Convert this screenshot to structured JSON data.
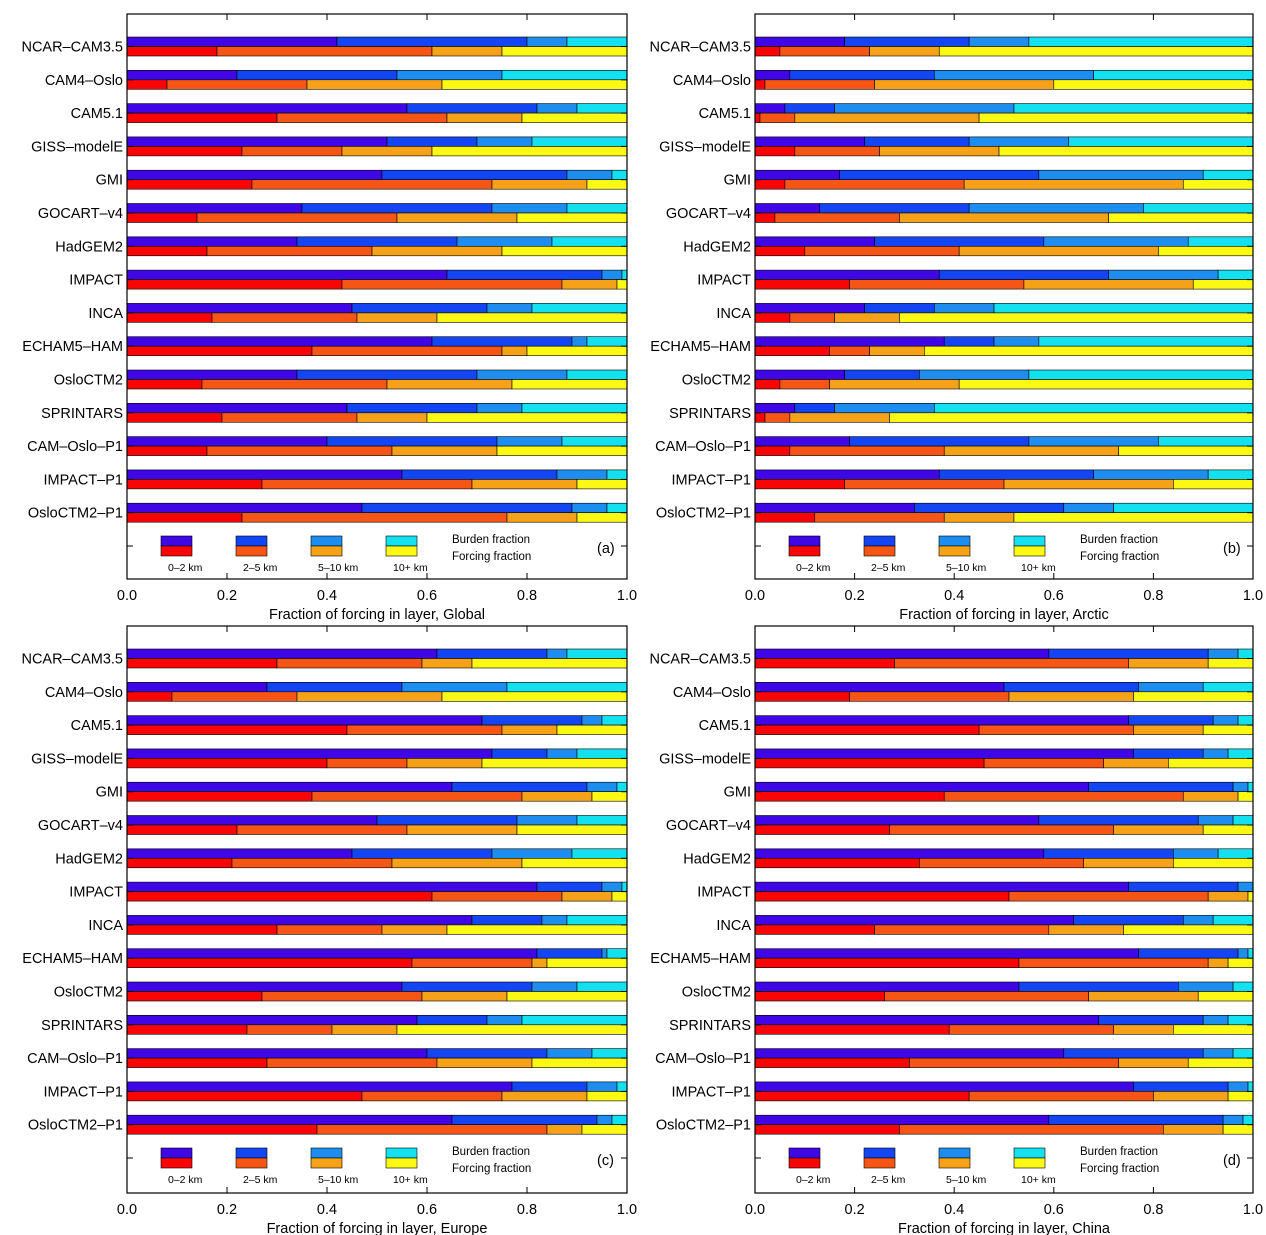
{
  "colors": {
    "burden": [
      "#3f07e6",
      "#1445f3",
      "#1d8eef",
      "#14e1f0"
    ],
    "forcing": [
      "#f80606",
      "#f55515",
      "#f6a218",
      "#fbf914"
    ],
    "frame": "#000000"
  },
  "legend": {
    "swatch_labels": [
      "0–2 km",
      "2–5 km",
      "5–10 km",
      "10+ km"
    ],
    "burden_label": "Burden fraction",
    "forcing_label": "Forcing fraction"
  },
  "models": [
    "NCAR–CAM3.5",
    "CAM4–Oslo",
    "CAM5.1",
    "GISS–modelE",
    "GMI",
    "GOCART–v4",
    "HadGEM2",
    "IMPACT",
    "INCA",
    "ECHAM5–HAM",
    "OsloCTM2",
    "SPRINTARS",
    "CAM–Oslo–P1",
    "IMPACT–P1",
    "OsloCTM2–P1"
  ],
  "chart_data": [
    {
      "type": "bar",
      "panel": "(a)",
      "xlabel": "Fraction of forcing in layer, Global",
      "xlim": [
        0,
        1
      ],
      "xticks": [
        "0.0",
        "0.2",
        "0.4",
        "0.6",
        "0.8",
        "1.0"
      ],
      "stacked": true,
      "orientation": "horizontal",
      "burden": [
        [
          0.42,
          0.38,
          0.08,
          0.12
        ],
        [
          0.22,
          0.32,
          0.21,
          0.25
        ],
        [
          0.56,
          0.26,
          0.08,
          0.1
        ],
        [
          0.52,
          0.18,
          0.11,
          0.19
        ],
        [
          0.51,
          0.37,
          0.09,
          0.03
        ],
        [
          0.35,
          0.38,
          0.15,
          0.12
        ],
        [
          0.34,
          0.32,
          0.19,
          0.15
        ],
        [
          0.64,
          0.31,
          0.04,
          0.01
        ],
        [
          0.45,
          0.27,
          0.09,
          0.19
        ],
        [
          0.61,
          0.28,
          0.03,
          0.08
        ],
        [
          0.34,
          0.36,
          0.18,
          0.12
        ],
        [
          0.44,
          0.26,
          0.09,
          0.21
        ],
        [
          0.4,
          0.34,
          0.13,
          0.13
        ],
        [
          0.55,
          0.31,
          0.1,
          0.04
        ],
        [
          0.47,
          0.42,
          0.07,
          0.04
        ]
      ],
      "forcing": [
        [
          0.18,
          0.43,
          0.14,
          0.25
        ],
        [
          0.08,
          0.28,
          0.27,
          0.37
        ],
        [
          0.3,
          0.34,
          0.15,
          0.21
        ],
        [
          0.23,
          0.2,
          0.18,
          0.39
        ],
        [
          0.25,
          0.48,
          0.19,
          0.08
        ],
        [
          0.14,
          0.4,
          0.24,
          0.22
        ],
        [
          0.16,
          0.33,
          0.26,
          0.25
        ],
        [
          0.43,
          0.44,
          0.11,
          0.02
        ],
        [
          0.17,
          0.29,
          0.16,
          0.38
        ],
        [
          0.37,
          0.38,
          0.05,
          0.2
        ],
        [
          0.15,
          0.37,
          0.25,
          0.23
        ],
        [
          0.19,
          0.27,
          0.14,
          0.4
        ],
        [
          0.16,
          0.37,
          0.21,
          0.26
        ],
        [
          0.27,
          0.42,
          0.21,
          0.1
        ],
        [
          0.23,
          0.53,
          0.14,
          0.1
        ]
      ]
    },
    {
      "type": "bar",
      "panel": "(b)",
      "xlabel": "Fraction of forcing in layer, Arctic",
      "xlim": [
        0,
        1
      ],
      "xticks": [
        "0.0",
        "0.2",
        "0.4",
        "0.6",
        "0.8",
        "1.0"
      ],
      "stacked": true,
      "orientation": "horizontal",
      "burden": [
        [
          0.18,
          0.25,
          0.12,
          0.45
        ],
        [
          0.07,
          0.29,
          0.32,
          0.32
        ],
        [
          0.06,
          0.1,
          0.36,
          0.48
        ],
        [
          0.22,
          0.21,
          0.2,
          0.37
        ],
        [
          0.17,
          0.4,
          0.33,
          0.1
        ],
        [
          0.13,
          0.3,
          0.35,
          0.22
        ],
        [
          0.24,
          0.34,
          0.29,
          0.13
        ],
        [
          0.37,
          0.34,
          0.22,
          0.07
        ],
        [
          0.22,
          0.14,
          0.12,
          0.52
        ],
        [
          0.38,
          0.1,
          0.09,
          0.43
        ],
        [
          0.18,
          0.15,
          0.22,
          0.45
        ],
        [
          0.08,
          0.08,
          0.2,
          0.64
        ],
        [
          0.19,
          0.36,
          0.26,
          0.19
        ],
        [
          0.37,
          0.31,
          0.23,
          0.09
        ],
        [
          0.32,
          0.3,
          0.1,
          0.28
        ]
      ],
      "forcing": [
        [
          0.05,
          0.18,
          0.14,
          0.63
        ],
        [
          0.02,
          0.22,
          0.36,
          0.4
        ],
        [
          0.01,
          0.07,
          0.37,
          0.55
        ],
        [
          0.08,
          0.17,
          0.24,
          0.51
        ],
        [
          0.06,
          0.36,
          0.44,
          0.14
        ],
        [
          0.04,
          0.25,
          0.42,
          0.29
        ],
        [
          0.1,
          0.31,
          0.4,
          0.19
        ],
        [
          0.19,
          0.35,
          0.34,
          0.12
        ],
        [
          0.07,
          0.09,
          0.13,
          0.71
        ],
        [
          0.15,
          0.08,
          0.11,
          0.66
        ],
        [
          0.05,
          0.1,
          0.26,
          0.59
        ],
        [
          0.02,
          0.05,
          0.2,
          0.73
        ],
        [
          0.07,
          0.31,
          0.35,
          0.27
        ],
        [
          0.18,
          0.32,
          0.34,
          0.16
        ],
        [
          0.12,
          0.26,
          0.14,
          0.48
        ]
      ]
    },
    {
      "type": "bar",
      "panel": "(c)",
      "xlabel": "Fraction of forcing in layer, Europe",
      "xlim": [
        0,
        1
      ],
      "xticks": [
        "0.0",
        "0.2",
        "0.4",
        "0.6",
        "0.8",
        "1.0"
      ],
      "stacked": true,
      "orientation": "horizontal",
      "burden": [
        [
          0.62,
          0.22,
          0.04,
          0.12
        ],
        [
          0.28,
          0.27,
          0.21,
          0.24
        ],
        [
          0.71,
          0.2,
          0.04,
          0.05
        ],
        [
          0.73,
          0.11,
          0.06,
          0.1
        ],
        [
          0.65,
          0.27,
          0.06,
          0.02
        ],
        [
          0.5,
          0.28,
          0.12,
          0.1
        ],
        [
          0.45,
          0.28,
          0.16,
          0.11
        ],
        [
          0.82,
          0.13,
          0.04,
          0.01
        ],
        [
          0.69,
          0.14,
          0.05,
          0.12
        ],
        [
          0.82,
          0.13,
          0.01,
          0.04
        ],
        [
          0.55,
          0.26,
          0.09,
          0.1
        ],
        [
          0.58,
          0.14,
          0.07,
          0.21
        ],
        [
          0.6,
          0.24,
          0.09,
          0.07
        ],
        [
          0.77,
          0.15,
          0.06,
          0.02
        ],
        [
          0.65,
          0.29,
          0.03,
          0.03
        ]
      ],
      "forcing": [
        [
          0.3,
          0.29,
          0.1,
          0.31
        ],
        [
          0.09,
          0.25,
          0.29,
          0.37
        ],
        [
          0.44,
          0.31,
          0.11,
          0.14
        ],
        [
          0.4,
          0.16,
          0.15,
          0.29
        ],
        [
          0.37,
          0.42,
          0.14,
          0.07
        ],
        [
          0.22,
          0.34,
          0.22,
          0.22
        ],
        [
          0.21,
          0.32,
          0.26,
          0.21
        ],
        [
          0.61,
          0.26,
          0.1,
          0.03
        ],
        [
          0.3,
          0.21,
          0.13,
          0.36
        ],
        [
          0.57,
          0.24,
          0.03,
          0.16
        ],
        [
          0.27,
          0.32,
          0.17,
          0.24
        ],
        [
          0.24,
          0.17,
          0.13,
          0.46
        ],
        [
          0.28,
          0.34,
          0.19,
          0.19
        ],
        [
          0.47,
          0.28,
          0.17,
          0.08
        ],
        [
          0.38,
          0.46,
          0.07,
          0.09
        ]
      ]
    },
    {
      "type": "bar",
      "panel": "(d)",
      "xlabel": "Fraction of forcing in layer, China",
      "xlim": [
        0,
        1
      ],
      "xticks": [
        "0.0",
        "0.2",
        "0.4",
        "0.6",
        "0.8",
        "1.0"
      ],
      "stacked": true,
      "orientation": "horizontal",
      "burden": [
        [
          0.59,
          0.32,
          0.06,
          0.03
        ],
        [
          0.5,
          0.27,
          0.13,
          0.1
        ],
        [
          0.75,
          0.17,
          0.05,
          0.03
        ],
        [
          0.76,
          0.14,
          0.05,
          0.05
        ],
        [
          0.67,
          0.29,
          0.03,
          0.01
        ],
        [
          0.57,
          0.32,
          0.07,
          0.04
        ],
        [
          0.58,
          0.26,
          0.09,
          0.07
        ],
        [
          0.75,
          0.22,
          0.03,
          0.0
        ],
        [
          0.64,
          0.22,
          0.06,
          0.08
        ],
        [
          0.77,
          0.2,
          0.02,
          0.01
        ],
        [
          0.53,
          0.32,
          0.11,
          0.04
        ],
        [
          0.69,
          0.21,
          0.05,
          0.05
        ],
        [
          0.62,
          0.28,
          0.06,
          0.04
        ],
        [
          0.76,
          0.19,
          0.04,
          0.01
        ],
        [
          0.59,
          0.35,
          0.04,
          0.02
        ]
      ],
      "forcing": [
        [
          0.28,
          0.47,
          0.16,
          0.09
        ],
        [
          0.19,
          0.32,
          0.25,
          0.24
        ],
        [
          0.45,
          0.31,
          0.14,
          0.1
        ],
        [
          0.46,
          0.24,
          0.13,
          0.17
        ],
        [
          0.38,
          0.48,
          0.11,
          0.03
        ],
        [
          0.27,
          0.45,
          0.18,
          0.1
        ],
        [
          0.33,
          0.33,
          0.18,
          0.16
        ],
        [
          0.51,
          0.4,
          0.08,
          0.01
        ],
        [
          0.24,
          0.35,
          0.15,
          0.26
        ],
        [
          0.53,
          0.38,
          0.04,
          0.05
        ],
        [
          0.26,
          0.41,
          0.22,
          0.11
        ],
        [
          0.39,
          0.33,
          0.12,
          0.16
        ],
        [
          0.31,
          0.42,
          0.14,
          0.13
        ],
        [
          0.43,
          0.37,
          0.15,
          0.05
        ],
        [
          0.29,
          0.53,
          0.12,
          0.06
        ]
      ]
    }
  ]
}
